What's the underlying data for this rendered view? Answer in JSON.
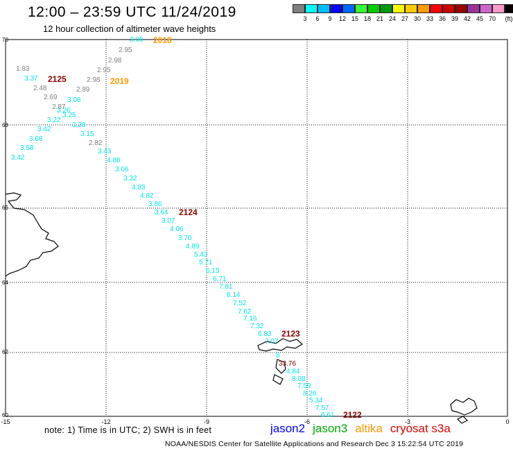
{
  "title": "12:00 – 23:59 UTC 11/24/2019",
  "subtitle": "12 hour collection of altimeter wave heights",
  "colorbar": {
    "colors": [
      "#7f7f7f",
      "#00ffff",
      "#00bfff",
      "#0000ff",
      "#0066ff",
      "#33ff33",
      "#00cc00",
      "#009900",
      "#ffff00",
      "#ffcc00",
      "#ff9900",
      "#ff0000",
      "#cc0000",
      "#990000",
      "#993399",
      "#cc66cc",
      "#ff99cc",
      "#000000"
    ],
    "labels": [
      "3",
      "6",
      "9",
      "12",
      "15",
      "18",
      "21",
      "24",
      "27",
      "30",
      "33",
      "36",
      "39",
      "42",
      "45",
      "70",
      "(ft)"
    ]
  },
  "axes": {
    "x_ticks": [
      "-15",
      "-12",
      "-9",
      "-6",
      "-3",
      "0"
    ],
    "y_ticks": [
      "70",
      "68",
      "66",
      "64",
      "62",
      "60"
    ]
  },
  "passes": [
    {
      "id": "2018",
      "color": "#ff9900"
    },
    {
      "id": "2019",
      "color": "#ff9900"
    },
    {
      "id": "2125",
      "color": "#8b0000"
    },
    {
      "id": "2124",
      "color": "#8b0000"
    },
    {
      "id": "2123",
      "color": "#8b0000"
    },
    {
      "id": "2122",
      "color": "#8b0000"
    }
  ],
  "labels": [
    {
      "t": "3.08",
      "c": "#00e5e5"
    },
    {
      "t": "2.95",
      "c": "#808080"
    },
    {
      "t": "2.98",
      "c": "#808080"
    },
    {
      "t": "1.83",
      "c": "#808080"
    },
    {
      "t": "2.95",
      "c": "#808080"
    },
    {
      "t": "3.37",
      "c": "#00e5e5"
    },
    {
      "t": "2.98",
      "c": "#808080"
    },
    {
      "t": "2.48",
      "c": "#808080"
    },
    {
      "t": "2.89",
      "c": "#808080"
    },
    {
      "t": "2.69",
      "c": "#808080"
    },
    {
      "t": "3.08",
      "c": "#00e5e5"
    },
    {
      "t": "2.87",
      "c": "#808080"
    },
    {
      "t": "3.26",
      "c": "#00e5e5"
    },
    {
      "t": "3.25",
      "c": "#00e5e5"
    },
    {
      "t": "3.22",
      "c": "#00e5e5"
    },
    {
      "t": "3.28",
      "c": "#00e5e5"
    },
    {
      "t": "3.42",
      "c": "#00e5e5"
    },
    {
      "t": "3.15",
      "c": "#00e5e5"
    },
    {
      "t": "3.68",
      "c": "#00e5e5"
    },
    {
      "t": "2.82",
      "c": "#808080"
    },
    {
      "t": "3.58",
      "c": "#00e5e5"
    },
    {
      "t": "3.43",
      "c": "#00e5e5"
    },
    {
      "t": "3.42",
      "c": "#00e5e5"
    },
    {
      "t": "4.88",
      "c": "#00e5e5"
    },
    {
      "t": "3.06",
      "c": "#00e5e5"
    },
    {
      "t": "3.32",
      "c": "#00e5e5"
    },
    {
      "t": "4.83",
      "c": "#00e5e5"
    },
    {
      "t": "4.82",
      "c": "#00e5e5"
    },
    {
      "t": "3.86",
      "c": "#00e5e5"
    },
    {
      "t": "3.64",
      "c": "#00e5e5"
    },
    {
      "t": "3.07",
      "c": "#00e5e5"
    },
    {
      "t": "4.06",
      "c": "#00e5e5"
    },
    {
      "t": "3.70",
      "c": "#00e5e5"
    },
    {
      "t": "4.89",
      "c": "#00e5e5"
    },
    {
      "t": "5.43",
      "c": "#00e5e5"
    },
    {
      "t": "5.71",
      "c": "#00e5e5"
    },
    {
      "t": "6.15",
      "c": "#00e5e5"
    },
    {
      "t": "6.71",
      "c": "#00e5e5"
    },
    {
      "t": "7.81",
      "c": "#00e5e5"
    },
    {
      "t": "8.14",
      "c": "#00e5e5"
    },
    {
      "t": "7.52",
      "c": "#00e5e5"
    },
    {
      "t": "7.62",
      "c": "#00e5e5"
    },
    {
      "t": "7.16",
      "c": "#00e5e5"
    },
    {
      "t": "7.32",
      "c": "#00e5e5"
    },
    {
      "t": "6.83",
      "c": "#00e5e5"
    },
    {
      "t": "7.07",
      "c": "#00e5e5"
    },
    {
      "t": "8",
      "c": "#00e5e5"
    },
    {
      "t": "33.76",
      "c": "#8b0000"
    },
    {
      "t": "4.84",
      "c": "#00e5e5"
    },
    {
      "t": "8.08",
      "c": "#00e5e5"
    },
    {
      "t": "7.59",
      "c": "#00e5e5"
    },
    {
      "t": "8.26",
      "c": "#00e5e5"
    },
    {
      "t": "5.34",
      "c": "#00e5e5"
    },
    {
      "t": "7.57",
      "c": "#00e5e5"
    },
    {
      "t": "6.61",
      "c": "#00e5e5"
    }
  ],
  "note": "note: 1) Time is in UTC; 2) SWH is in feet",
  "legend": [
    {
      "name": "jason2",
      "color": "#0000ff"
    },
    {
      "name": "jason3",
      "color": "#00aa00"
    },
    {
      "name": "altika",
      "color": "#ff9900"
    },
    {
      "name": "cryosat s3a",
      "color": "#dd0000"
    }
  ],
  "footer": "NOAA/NESDIS Center for Satellite Applications and Research    Dec  3 15:22:54 UTC 2019"
}
